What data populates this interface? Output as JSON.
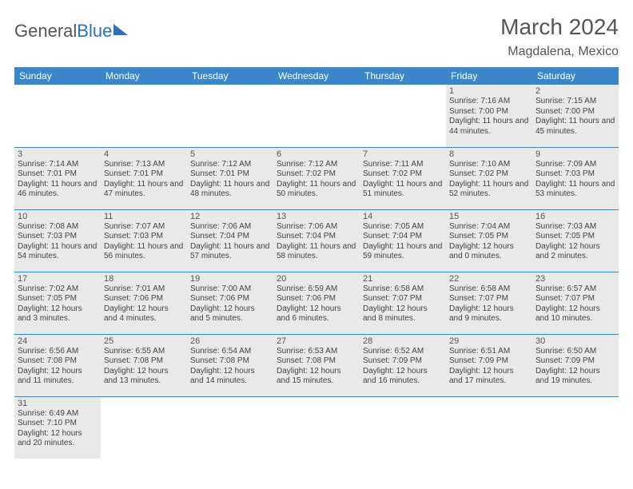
{
  "logo": {
    "text_gray": "General",
    "text_blue": "Blue"
  },
  "title": "March 2024",
  "location": "Magdalena, Mexico",
  "colors": {
    "header_bg": "#3a86c8",
    "header_fg": "#ffffff",
    "cell_bg": "#e9e9e9",
    "border": "#3a86c8",
    "text": "#444444",
    "title_color": "#555555"
  },
  "weekdays": [
    "Sunday",
    "Monday",
    "Tuesday",
    "Wednesday",
    "Thursday",
    "Friday",
    "Saturday"
  ],
  "weeks": [
    [
      null,
      null,
      null,
      null,
      null,
      {
        "d": "1",
        "sr": "Sunrise: 7:16 AM",
        "ss": "Sunset: 7:00 PM",
        "dl": "Daylight: 11 hours and 44 minutes."
      },
      {
        "d": "2",
        "sr": "Sunrise: 7:15 AM",
        "ss": "Sunset: 7:00 PM",
        "dl": "Daylight: 11 hours and 45 minutes."
      }
    ],
    [
      {
        "d": "3",
        "sr": "Sunrise: 7:14 AM",
        "ss": "Sunset: 7:01 PM",
        "dl": "Daylight: 11 hours and 46 minutes."
      },
      {
        "d": "4",
        "sr": "Sunrise: 7:13 AM",
        "ss": "Sunset: 7:01 PM",
        "dl": "Daylight: 11 hours and 47 minutes."
      },
      {
        "d": "5",
        "sr": "Sunrise: 7:12 AM",
        "ss": "Sunset: 7:01 PM",
        "dl": "Daylight: 11 hours and 48 minutes."
      },
      {
        "d": "6",
        "sr": "Sunrise: 7:12 AM",
        "ss": "Sunset: 7:02 PM",
        "dl": "Daylight: 11 hours and 50 minutes."
      },
      {
        "d": "7",
        "sr": "Sunrise: 7:11 AM",
        "ss": "Sunset: 7:02 PM",
        "dl": "Daylight: 11 hours and 51 minutes."
      },
      {
        "d": "8",
        "sr": "Sunrise: 7:10 AM",
        "ss": "Sunset: 7:02 PM",
        "dl": "Daylight: 11 hours and 52 minutes."
      },
      {
        "d": "9",
        "sr": "Sunrise: 7:09 AM",
        "ss": "Sunset: 7:03 PM",
        "dl": "Daylight: 11 hours and 53 minutes."
      }
    ],
    [
      {
        "d": "10",
        "sr": "Sunrise: 7:08 AM",
        "ss": "Sunset: 7:03 PM",
        "dl": "Daylight: 11 hours and 54 minutes."
      },
      {
        "d": "11",
        "sr": "Sunrise: 7:07 AM",
        "ss": "Sunset: 7:03 PM",
        "dl": "Daylight: 11 hours and 56 minutes."
      },
      {
        "d": "12",
        "sr": "Sunrise: 7:06 AM",
        "ss": "Sunset: 7:04 PM",
        "dl": "Daylight: 11 hours and 57 minutes."
      },
      {
        "d": "13",
        "sr": "Sunrise: 7:06 AM",
        "ss": "Sunset: 7:04 PM",
        "dl": "Daylight: 11 hours and 58 minutes."
      },
      {
        "d": "14",
        "sr": "Sunrise: 7:05 AM",
        "ss": "Sunset: 7:04 PM",
        "dl": "Daylight: 11 hours and 59 minutes."
      },
      {
        "d": "15",
        "sr": "Sunrise: 7:04 AM",
        "ss": "Sunset: 7:05 PM",
        "dl": "Daylight: 12 hours and 0 minutes."
      },
      {
        "d": "16",
        "sr": "Sunrise: 7:03 AM",
        "ss": "Sunset: 7:05 PM",
        "dl": "Daylight: 12 hours and 2 minutes."
      }
    ],
    [
      {
        "d": "17",
        "sr": "Sunrise: 7:02 AM",
        "ss": "Sunset: 7:05 PM",
        "dl": "Daylight: 12 hours and 3 minutes."
      },
      {
        "d": "18",
        "sr": "Sunrise: 7:01 AM",
        "ss": "Sunset: 7:06 PM",
        "dl": "Daylight: 12 hours and 4 minutes."
      },
      {
        "d": "19",
        "sr": "Sunrise: 7:00 AM",
        "ss": "Sunset: 7:06 PM",
        "dl": "Daylight: 12 hours and 5 minutes."
      },
      {
        "d": "20",
        "sr": "Sunrise: 6:59 AM",
        "ss": "Sunset: 7:06 PM",
        "dl": "Daylight: 12 hours and 6 minutes."
      },
      {
        "d": "21",
        "sr": "Sunrise: 6:58 AM",
        "ss": "Sunset: 7:07 PM",
        "dl": "Daylight: 12 hours and 8 minutes."
      },
      {
        "d": "22",
        "sr": "Sunrise: 6:58 AM",
        "ss": "Sunset: 7:07 PM",
        "dl": "Daylight: 12 hours and 9 minutes."
      },
      {
        "d": "23",
        "sr": "Sunrise: 6:57 AM",
        "ss": "Sunset: 7:07 PM",
        "dl": "Daylight: 12 hours and 10 minutes."
      }
    ],
    [
      {
        "d": "24",
        "sr": "Sunrise: 6:56 AM",
        "ss": "Sunset: 7:08 PM",
        "dl": "Daylight: 12 hours and 11 minutes."
      },
      {
        "d": "25",
        "sr": "Sunrise: 6:55 AM",
        "ss": "Sunset: 7:08 PM",
        "dl": "Daylight: 12 hours and 13 minutes."
      },
      {
        "d": "26",
        "sr": "Sunrise: 6:54 AM",
        "ss": "Sunset: 7:08 PM",
        "dl": "Daylight: 12 hours and 14 minutes."
      },
      {
        "d": "27",
        "sr": "Sunrise: 6:53 AM",
        "ss": "Sunset: 7:08 PM",
        "dl": "Daylight: 12 hours and 15 minutes."
      },
      {
        "d": "28",
        "sr": "Sunrise: 6:52 AM",
        "ss": "Sunset: 7:09 PM",
        "dl": "Daylight: 12 hours and 16 minutes."
      },
      {
        "d": "29",
        "sr": "Sunrise: 6:51 AM",
        "ss": "Sunset: 7:09 PM",
        "dl": "Daylight: 12 hours and 17 minutes."
      },
      {
        "d": "30",
        "sr": "Sunrise: 6:50 AM",
        "ss": "Sunset: 7:09 PM",
        "dl": "Daylight: 12 hours and 19 minutes."
      }
    ],
    [
      {
        "d": "31",
        "sr": "Sunrise: 6:49 AM",
        "ss": "Sunset: 7:10 PM",
        "dl": "Daylight: 12 hours and 20 minutes."
      },
      null,
      null,
      null,
      null,
      null,
      null
    ]
  ]
}
